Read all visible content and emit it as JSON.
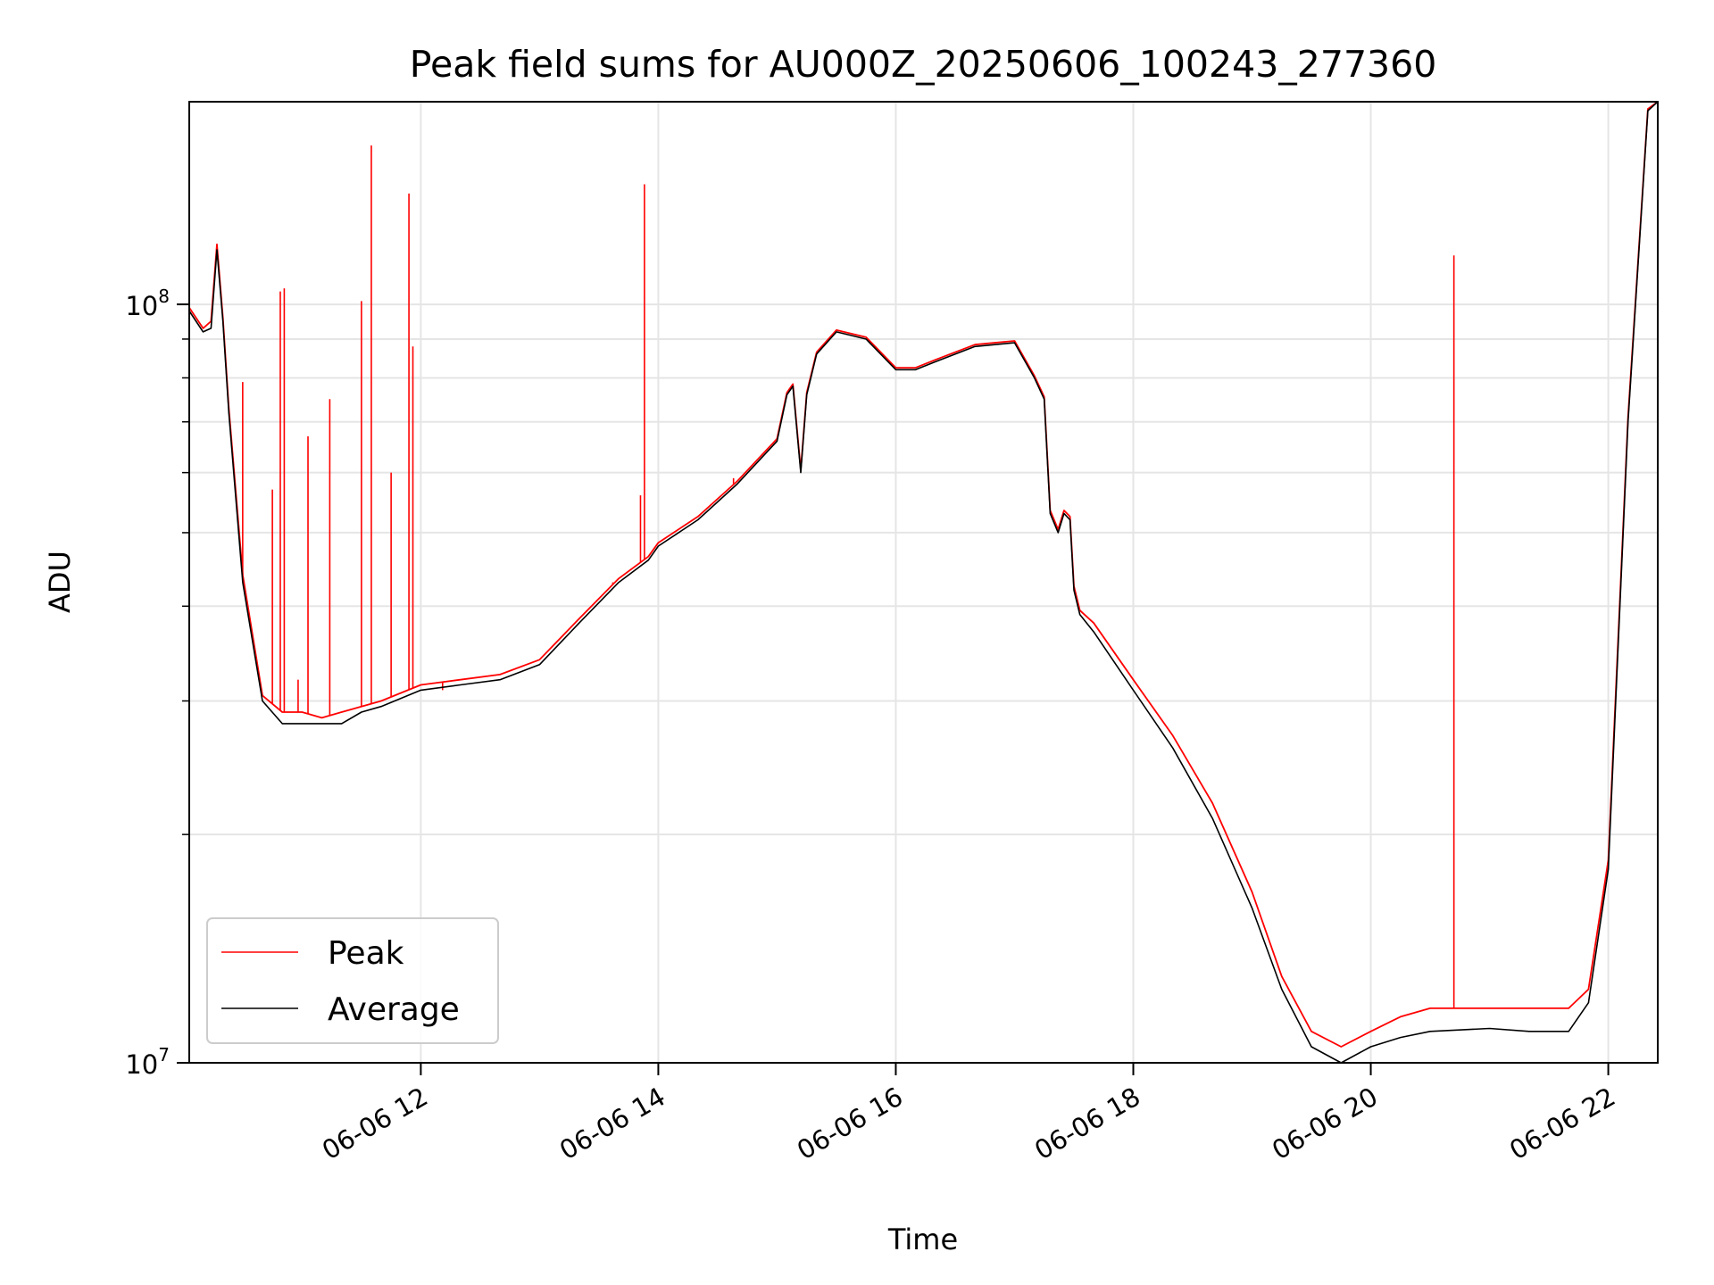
{
  "chart_data": {
    "type": "line",
    "title": "Peak field sums for AU000Z_20250606_100243_277360",
    "xlabel": "Time",
    "ylabel": "ADU",
    "yscale": "log",
    "ylim": [
      10000000,
      185000000
    ],
    "xlim": [
      "06-06 10:03",
      "06-06 22:25"
    ],
    "grid": true,
    "legend": "lower-left",
    "x_ticks": [
      {
        "t": "06-06 12:00",
        "label": "06-06 12"
      },
      {
        "t": "06-06 14:00",
        "label": "06-06 14"
      },
      {
        "t": "06-06 16:00",
        "label": "06-06 16"
      },
      {
        "t": "06-06 18:00",
        "label": "06-06 18"
      },
      {
        "t": "06-06 20:00",
        "label": "06-06 20"
      },
      {
        "t": "06-06 22:00",
        "label": "06-06 22"
      }
    ],
    "y_major_ticks": [
      {
        "value": 10000000,
        "base": "10",
        "exp": "7"
      },
      {
        "value": 100000000,
        "base": "10",
        "exp": "8"
      }
    ],
    "y_minor_ticks": [
      20000000,
      30000000,
      40000000,
      50000000,
      60000000,
      70000000,
      80000000,
      90000000
    ],
    "series": [
      {
        "name": "Average",
        "color": "#000000",
        "x": [
          "06-06 10:03",
          "06-06 10:10",
          "06-06 10:14",
          "06-06 10:17",
          "06-06 10:20",
          "06-06 10:23",
          "06-06 10:30",
          "06-06 10:40",
          "06-06 10:50",
          "06-06 11:00",
          "06-06 11:10",
          "06-06 11:20",
          "06-06 11:30",
          "06-06 11:40",
          "06-06 12:00",
          "06-06 12:20",
          "06-06 12:40",
          "06-06 13:00",
          "06-06 13:20",
          "06-06 13:40",
          "06-06 13:55",
          "06-06 14:00",
          "06-06 14:20",
          "06-06 14:40",
          "06-06 15:00",
          "06-06 15:05",
          "06-06 15:08",
          "06-06 15:12",
          "06-06 15:15",
          "06-06 15:20",
          "06-06 15:30",
          "06-06 15:45",
          "06-06 16:00",
          "06-06 16:10",
          "06-06 16:20",
          "06-06 16:40",
          "06-06 17:00",
          "06-06 17:10",
          "06-06 17:15",
          "06-06 17:18",
          "06-06 17:22",
          "06-06 17:25",
          "06-06 17:28",
          "06-06 17:30",
          "06-06 17:33",
          "06-06 17:40",
          "06-06 18:00",
          "06-06 18:20",
          "06-06 18:40",
          "06-06 19:00",
          "06-06 19:15",
          "06-06 19:30",
          "06-06 19:45",
          "06-06 20:00",
          "06-06 20:15",
          "06-06 20:30",
          "06-06 21:00",
          "06-06 21:20",
          "06-06 21:40",
          "06-06 21:50",
          "06-06 22:00",
          "06-06 22:10",
          "06-06 22:20",
          "06-06 22:25"
        ],
        "y": [
          98000000,
          92000000,
          93000000,
          118000000,
          95000000,
          72000000,
          43000000,
          30000000,
          28000000,
          28000000,
          28000000,
          28000000,
          29000000,
          29500000,
          31000000,
          31500000,
          32000000,
          33500000,
          38000000,
          43000000,
          46000000,
          48000000,
          52000000,
          58000000,
          66000000,
          76000000,
          78000000,
          60000000,
          76000000,
          86000000,
          92000000,
          90000000,
          82000000,
          82000000,
          84000000,
          88000000,
          89000000,
          80000000,
          75000000,
          53000000,
          50000000,
          53000000,
          52000000,
          42000000,
          39000000,
          37000000,
          31000000,
          26000000,
          21000000,
          16000000,
          12500000,
          10500000,
          10000000,
          10500000,
          10800000,
          11000000,
          11100000,
          11000000,
          11000000,
          12000000,
          18000000,
          70000000,
          180000000,
          185000000
        ]
      },
      {
        "name": "Peak",
        "color": "#ff0000",
        "x": [
          "06-06 10:03",
          "06-06 10:10",
          "06-06 10:14",
          "06-06 10:17",
          "06-06 10:20",
          "06-06 10:23",
          "06-06 10:30",
          "06-06 10:40",
          "06-06 10:50",
          "06-06 11:00",
          "06-06 11:10",
          "06-06 11:20",
          "06-06 11:30",
          "06-06 11:40",
          "06-06 12:00",
          "06-06 12:20",
          "06-06 12:40",
          "06-06 13:00",
          "06-06 13:20",
          "06-06 13:40",
          "06-06 13:55",
          "06-06 14:00",
          "06-06 14:20",
          "06-06 14:40",
          "06-06 15:00",
          "06-06 15:05",
          "06-06 15:08",
          "06-06 15:12",
          "06-06 15:15",
          "06-06 15:20",
          "06-06 15:30",
          "06-06 15:45",
          "06-06 16:00",
          "06-06 16:10",
          "06-06 16:20",
          "06-06 16:40",
          "06-06 17:00",
          "06-06 17:10",
          "06-06 17:15",
          "06-06 17:18",
          "06-06 17:22",
          "06-06 17:25",
          "06-06 17:28",
          "06-06 17:30",
          "06-06 17:33",
          "06-06 17:40",
          "06-06 18:00",
          "06-06 18:20",
          "06-06 18:40",
          "06-06 19:00",
          "06-06 19:15",
          "06-06 19:30",
          "06-06 19:45",
          "06-06 20:00",
          "06-06 20:15",
          "06-06 20:30",
          "06-06 21:00",
          "06-06 21:20",
          "06-06 21:40",
          "06-06 21:50",
          "06-06 22:00",
          "06-06 22:10",
          "06-06 22:20",
          "06-06 22:25"
        ],
        "y": [
          99000000,
          93000000,
          95000000,
          120000000,
          96000000,
          73000000,
          44000000,
          30500000,
          29000000,
          29000000,
          28500000,
          29000000,
          29500000,
          30000000,
          31500000,
          32000000,
          32500000,
          34000000,
          38500000,
          43500000,
          46500000,
          48500000,
          52500000,
          58500000,
          66500000,
          76500000,
          78500000,
          60500000,
          76500000,
          86500000,
          92500000,
          90500000,
          82500000,
          82500000,
          84500000,
          88500000,
          89500000,
          80500000,
          75500000,
          53500000,
          50500000,
          53500000,
          52500000,
          42500000,
          39500000,
          38000000,
          32000000,
          27000000,
          22000000,
          16800000,
          13000000,
          11000000,
          10500000,
          11000000,
          11500000,
          11800000,
          11800000,
          11800000,
          11800000,
          12500000,
          18500000,
          71000000,
          181000000,
          185000000
        ],
        "spikes": [
          {
            "x": "06-06 10:03",
            "y": 118000000
          },
          {
            "x": "06-06 10:30",
            "y": 79000000
          },
          {
            "x": "06-06 10:45",
            "y": 57000000
          },
          {
            "x": "06-06 10:49",
            "y": 104000000
          },
          {
            "x": "06-06 10:51",
            "y": 105000000
          },
          {
            "x": "06-06 10:58",
            "y": 32000000
          },
          {
            "x": "06-06 11:03",
            "y": 67000000
          },
          {
            "x": "06-06 11:14",
            "y": 75000000
          },
          {
            "x": "06-06 11:30",
            "y": 101000000
          },
          {
            "x": "06-06 11:35",
            "y": 162000000
          },
          {
            "x": "06-06 11:45",
            "y": 60000000
          },
          {
            "x": "06-06 11:54",
            "y": 140000000
          },
          {
            "x": "06-06 11:56",
            "y": 88000000
          },
          {
            "x": "06-06 12:11",
            "y": 31000000
          },
          {
            "x": "06-06 13:37",
            "y": 43000000
          },
          {
            "x": "06-06 13:51",
            "y": 56000000
          },
          {
            "x": "06-06 13:53",
            "y": 144000000
          },
          {
            "x": "06-06 14:38",
            "y": 59000000
          },
          {
            "x": "06-06 20:42",
            "y": 116000000
          }
        ]
      }
    ]
  }
}
